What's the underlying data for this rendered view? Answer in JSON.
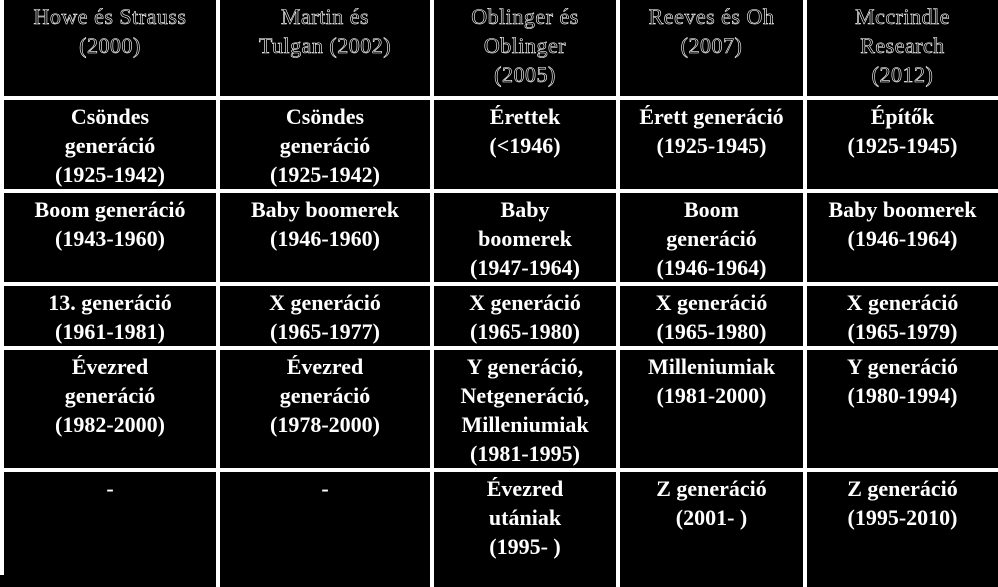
{
  "headers": [
    [
      "Howe és Strauss",
      "(2000)"
    ],
    [
      "Martin és",
      "Tulgan (2002)"
    ],
    [
      "Oblinger és",
      "Oblinger",
      "(2005)"
    ],
    [
      "Reeves és Oh",
      "(2007)"
    ],
    [
      "Mccrindle",
      "Research",
      "(2012)"
    ]
  ],
  "rows": [
    [
      [
        "Csöndes",
        "generáció",
        "(1925-1942)"
      ],
      [
        "Csöndes",
        "generáció",
        "(1925-1942)"
      ],
      [
        "Érettek",
        "(<1946)"
      ],
      [
        "Érett generáció",
        "(1925-1945)"
      ],
      [
        "Építők",
        "(1925-1945)"
      ]
    ],
    [
      [
        "Boom generáció",
        "(1943-1960)"
      ],
      [
        "Baby boomerek",
        "(1946-1960)"
      ],
      [
        "Baby",
        "boomerek",
        "(1947-1964)"
      ],
      [
        "Boom",
        "generáció",
        "(1946-1964)"
      ],
      [
        "Baby boomerek",
        "(1946-1964)"
      ]
    ],
    [
      [
        "13. generáció",
        "(1961-1981)"
      ],
      [
        "X generáció",
        "(1965-1977)"
      ],
      [
        "X generáció",
        "(1965-1980)"
      ],
      [
        "X generáció",
        "(1965-1980)"
      ],
      [
        "X generáció",
        "(1965-1979)"
      ]
    ],
    [
      [
        "Évezred",
        "generáció",
        "(1982-2000)"
      ],
      [
        "Évezred",
        "generáció",
        "(1978-2000)"
      ],
      [
        "Y generáció,",
        "Netgeneráció,",
        "Milleniumiak",
        "(1981-1995)"
      ],
      [
        "Milleniumiak",
        "(1981-2000)"
      ],
      [
        "Y generáció",
        "(1980-1994)"
      ]
    ],
    [
      [
        "-"
      ],
      [
        "-"
      ],
      [
        "Évezred",
        "utániak",
        "(1995- )"
      ],
      [
        "Z generáció",
        "(2001- )"
      ],
      [
        "Z generáció",
        "(1995-2010)"
      ]
    ]
  ]
}
